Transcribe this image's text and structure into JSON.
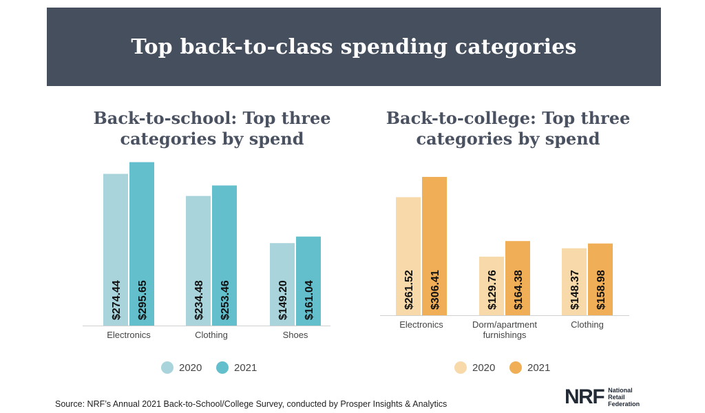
{
  "header": {
    "title": "Top back-to-class spending categories"
  },
  "footer": {
    "source": "Source: NRF’s Annual 2021 Back-to-School/College Survey, conducted by Prosper Insights & Analytics",
    "logo": {
      "mark": "NRF",
      "name_lines": [
        "National",
        "Retail",
        "Federation"
      ]
    }
  },
  "chart_data": [
    {
      "type": "bar",
      "title": "Back-to-school: Top three categories by spend",
      "categories": [
        "Electronics",
        "Clothing",
        "Shoes"
      ],
      "series": [
        {
          "name": "2020",
          "values": [
            274.44,
            234.48,
            149.2
          ],
          "labels": [
            "$274.44",
            "$234.48",
            "$149.20"
          ],
          "color": "#a9d4db"
        },
        {
          "name": "2021",
          "values": [
            295.65,
            253.46,
            161.04
          ],
          "labels": [
            "$295.65",
            "$253.46",
            "$161.04"
          ],
          "color": "#64bfcc"
        }
      ],
      "ylim": [
        0,
        320
      ],
      "legend": "bottom-center",
      "grid": false
    },
    {
      "type": "bar",
      "title": "Back-to-college: Top three categories by spend",
      "categories": [
        "Electronics",
        "Dorm/apartment furnishings",
        "Clothing"
      ],
      "series": [
        {
          "name": "2020",
          "values": [
            261.52,
            129.76,
            148.37
          ],
          "labels": [
            "$261.52",
            "$129.76",
            "$148.37"
          ],
          "color": "#f8d9a9"
        },
        {
          "name": "2021",
          "values": [
            306.41,
            164.38,
            158.98
          ],
          "labels": [
            "$306.41",
            "$164.38",
            "$158.98"
          ],
          "color": "#f0ae56"
        }
      ],
      "ylim": [
        0,
        340
      ],
      "legend": "bottom-center",
      "grid": false
    }
  ]
}
